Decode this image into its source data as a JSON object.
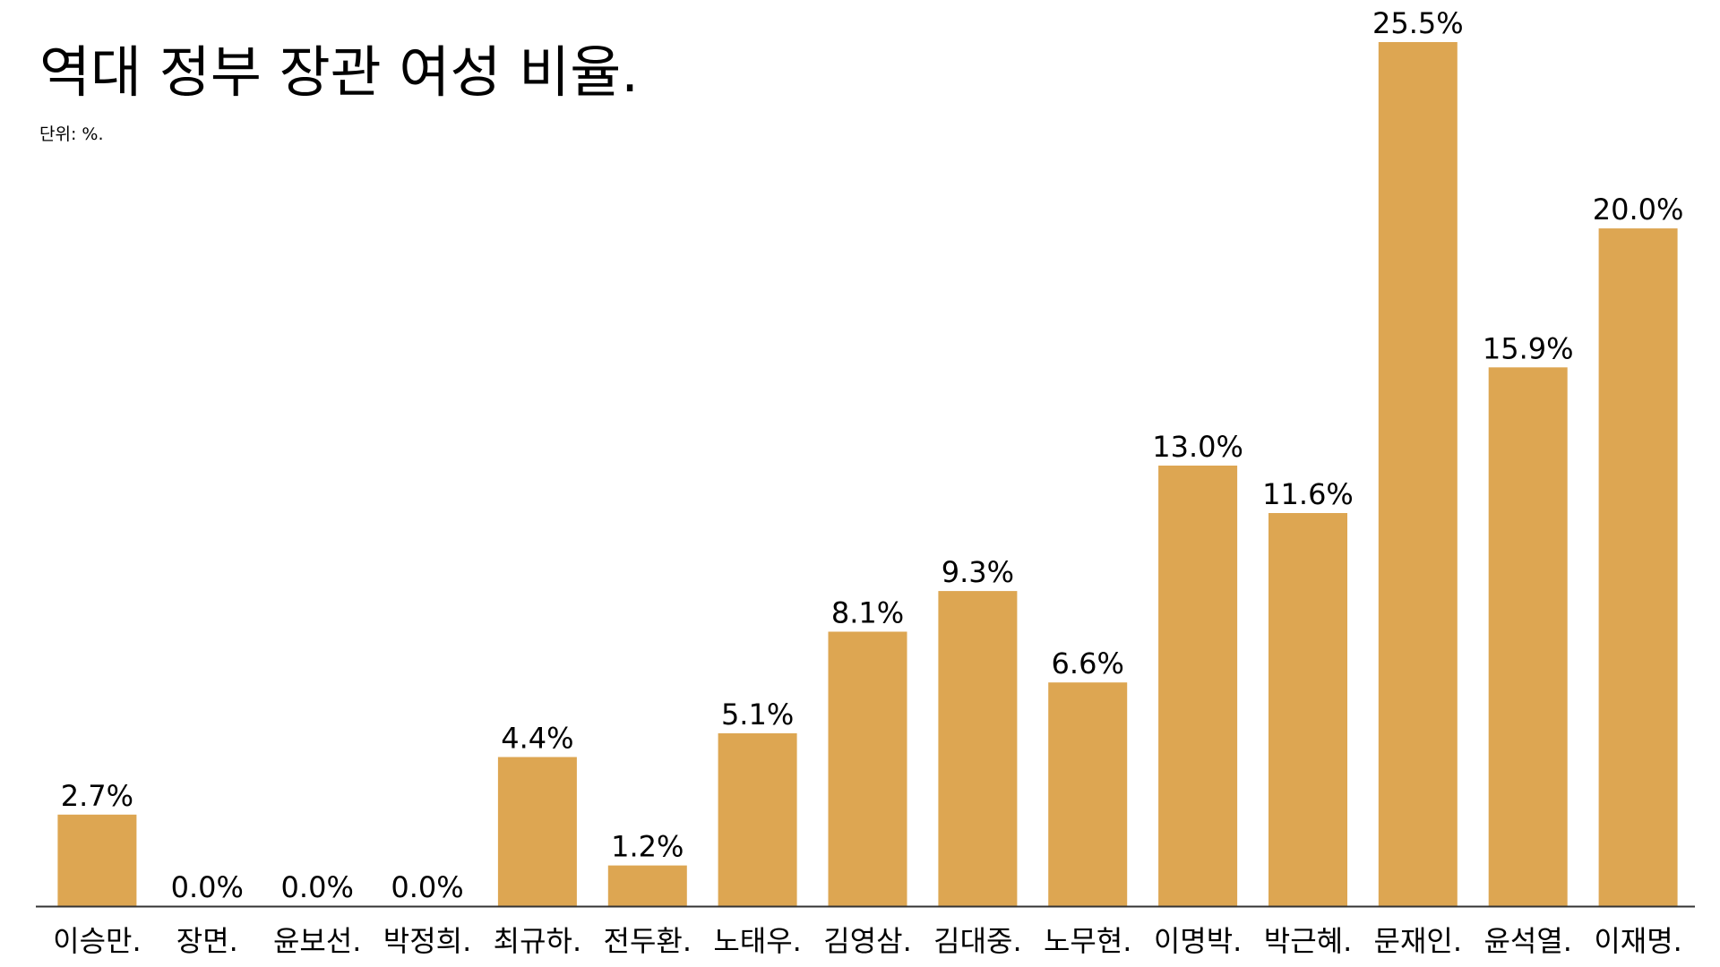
{
  "chart_data": {
    "type": "bar",
    "title": "역대 정부 장관 여성 비율.",
    "subtitle": "단위: %.",
    "categories": [
      "이승만.",
      "장면.",
      "윤보선.",
      "박정희.",
      "최규하.",
      "전두환.",
      "노태우.",
      "김영삼.",
      "김대중.",
      "노무현.",
      "이명박.",
      "박근혜.",
      "문재인.",
      "윤석열.",
      "이재명."
    ],
    "values": [
      2.7,
      0.0,
      0.0,
      0.0,
      4.4,
      1.2,
      5.1,
      8.1,
      9.3,
      6.6,
      13.0,
      11.6,
      25.5,
      15.9,
      20.0
    ],
    "value_labels": [
      "2.7%",
      "0.0%",
      "0.0%",
      "0.0%",
      "4.4%",
      "1.2%",
      "5.1%",
      "8.1%",
      "9.3%",
      "6.6%",
      "13.0%",
      "11.6%",
      "25.5%",
      "15.9%",
      "20.0%"
    ],
    "xlabel": "",
    "ylabel": "",
    "ylim": [
      0,
      25.5
    ],
    "grid": false,
    "legend": "none",
    "bar_color": "#DDA652",
    "axis_color": "#333333"
  }
}
